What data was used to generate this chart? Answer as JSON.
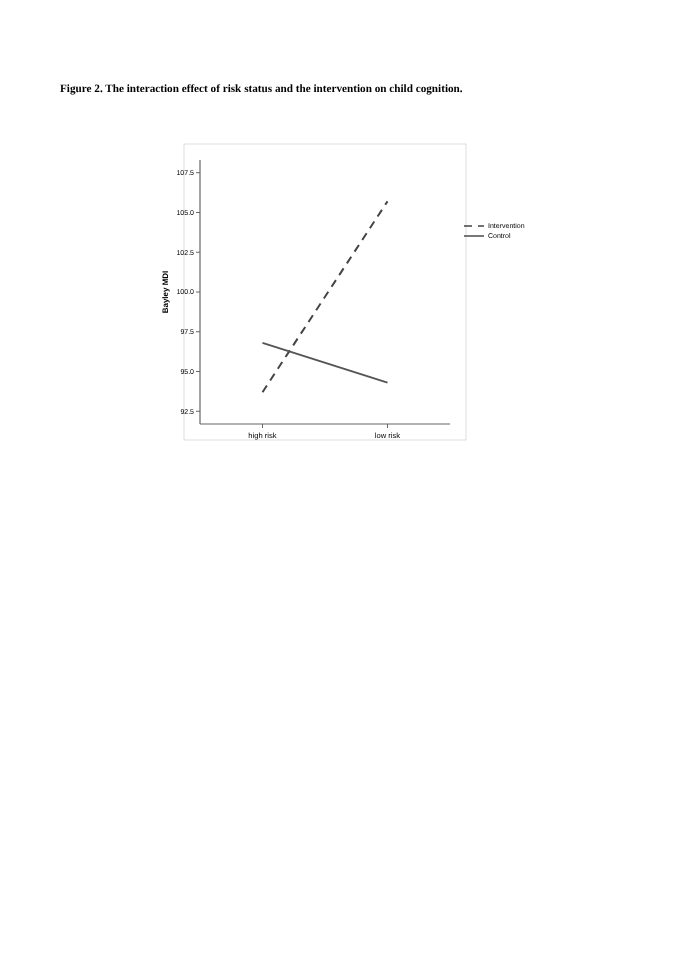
{
  "chart_data": {
    "type": "line",
    "title": "Figure 2. The interaction effect of risk status and the intervention on child cognition.",
    "ylabel": "Bayley MDI",
    "categories": [
      "high risk",
      "low risk"
    ],
    "series": [
      {
        "name": "Intervention",
        "color": "#444444",
        "values": [
          93.7,
          105.7
        ],
        "line_style": "dashed"
      },
      {
        "name": "Control",
        "color": "#555555",
        "values": [
          96.8,
          94.3
        ],
        "line_style": "solid"
      }
    ],
    "ylim": [
      91.7,
      108.3
    ],
    "yticks": [
      {
        "value": 92.5,
        "label": "92.5"
      },
      {
        "value": 95,
        "label": "95.0"
      },
      {
        "value": 97.5,
        "label": "97.5"
      },
      {
        "value": 100,
        "label": "100.0"
      },
      {
        "value": 102.5,
        "label": "102.5"
      },
      {
        "value": 105,
        "label": "105.0"
      },
      {
        "value": 107.5,
        "label": "107.5"
      }
    ],
    "grid": false,
    "legend": "right"
  }
}
